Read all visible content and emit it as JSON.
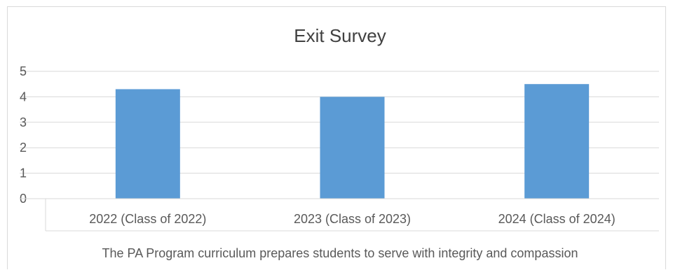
{
  "chart_data": {
    "type": "bar",
    "title": "Exit Survey",
    "xlabel": "The PA Program curriculum prepares students to serve with integrity and compassion",
    "ylabel": "",
    "categories": [
      "2022 (Class of 2022)",
      "2023 (Class of 2023)",
      "2024 (Class of 2024)"
    ],
    "values": [
      4.3,
      4.0,
      4.5
    ],
    "ylim": [
      0,
      5
    ],
    "yticks": [
      "0",
      "1",
      "2",
      "3",
      "4",
      "5"
    ],
    "grid": true,
    "legend": "none",
    "colors": {
      "bar": "#5b9bd5",
      "grid": "#d9d9d9",
      "axis": "#bfbfbf"
    }
  }
}
